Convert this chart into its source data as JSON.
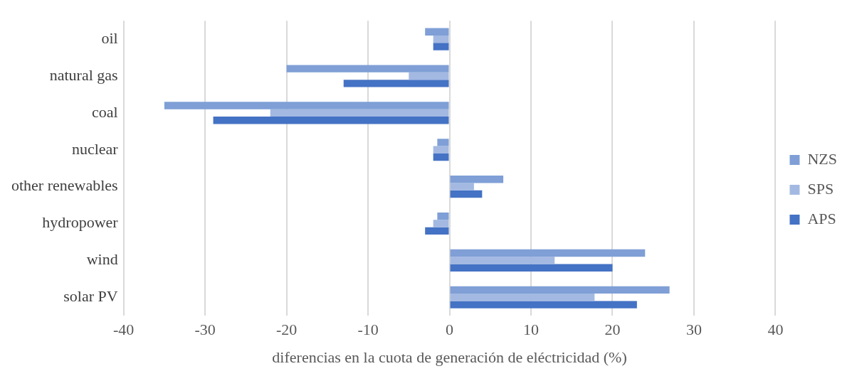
{
  "chart_data": {
    "type": "bar",
    "orientation": "horizontal",
    "xlabel": "diferencias en la cuota de generación de eléctricidad (%)",
    "categories": [
      "oil",
      "natural gas",
      "coal",
      "nuclear",
      "other renewables",
      "hydropower",
      "wind",
      "solar PV"
    ],
    "series": [
      {
        "name": "NZS",
        "color": "#7f9fd6",
        "values": [
          -3,
          -20,
          -35,
          -1.5,
          6.6,
          -1.5,
          24,
          27
        ]
      },
      {
        "name": "SPS",
        "color": "#a3b9e2",
        "values": [
          -2,
          -5,
          -22,
          -2,
          3,
          -2,
          12.9,
          17.8
        ]
      },
      {
        "name": "APS",
        "color": "#4472c4",
        "values": [
          -2,
          -13,
          -29,
          -2,
          4,
          -3,
          20,
          23
        ]
      }
    ],
    "xlim": [
      -40,
      40
    ],
    "xticks": [
      -40,
      -30,
      -20,
      -10,
      0,
      10,
      20,
      30,
      40
    ],
    "grid": "x",
    "legend": "right"
  }
}
